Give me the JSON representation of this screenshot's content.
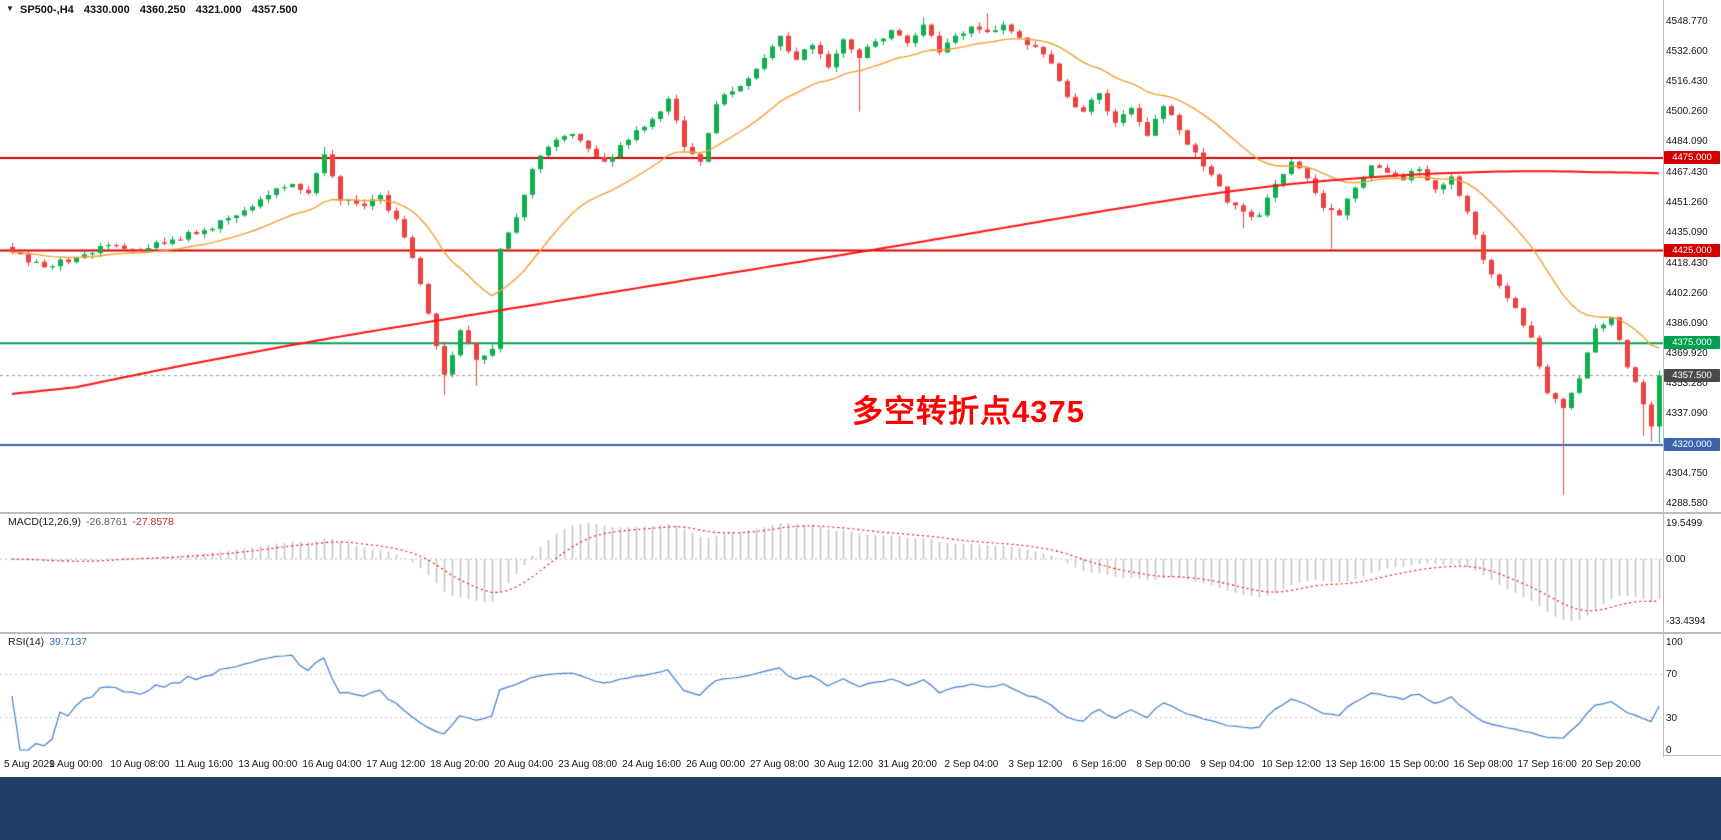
{
  "window": {
    "background": "#ffffff",
    "bottom_bar_color": "#1e3f66"
  },
  "header": {
    "symbol_timeframe": "SP500-,H4",
    "open": "4330.000",
    "high": "4360.250",
    "low": "4321.000",
    "close": "4357.500"
  },
  "chart_data": {
    "type": "candlestick",
    "symbol": "SP500-",
    "timeframe": "H4",
    "up_color": "#0fae4e",
    "down_color": "#ef4040",
    "y_axis": {
      "min": 4286,
      "max": 4556,
      "ticks": [
        "4548.770",
        "4532.600",
        "4516.430",
        "4500.260",
        "4484.090",
        "4467.430",
        "4451.260",
        "4435.090",
        "4418.430",
        "4402.260",
        "4386.090",
        "4369.920",
        "4353.280",
        "4337.090",
        "4304.750",
        "4288.580"
      ]
    },
    "x_ticks": [
      "5 Aug 2021",
      "9 Aug 00:00",
      "10 Aug 08:00",
      "11 Aug 16:00",
      "13 Aug 00:00",
      "16 Aug 04:00",
      "17 Aug 12:00",
      "18 Aug 20:00",
      "20 Aug 04:00",
      "23 Aug 08:00",
      "24 Aug 16:00",
      "26 Aug 00:00",
      "27 Aug 08:00",
      "30 Aug 12:00",
      "31 Aug 20:00",
      "2 Sep 04:00",
      "3 Sep 12:00",
      "6 Sep 16:00",
      "8 Sep 00:00",
      "9 Sep 04:00",
      "10 Sep 12:00",
      "13 Sep 16:00",
      "15 Sep 00:00",
      "16 Sep 08:00",
      "17 Sep 16:00",
      "20 Sep 20:00"
    ],
    "candles": {
      "count": 207,
      "bars_per_x_tick": 8,
      "seed": 9,
      "noise": 2.0,
      "anchors": [
        [
          0,
          4424
        ],
        [
          4,
          4416
        ],
        [
          8,
          4421
        ],
        [
          12,
          4428
        ],
        [
          16,
          4425
        ],
        [
          20,
          4431
        ],
        [
          24,
          4436
        ],
        [
          28,
          4444
        ],
        [
          32,
          4455
        ],
        [
          35,
          4461
        ],
        [
          37,
          4456
        ],
        [
          39,
          4477
        ],
        [
          41,
          4452
        ],
        [
          44,
          4449
        ],
        [
          46,
          4455
        ],
        [
          48,
          4442
        ],
        [
          50,
          4421
        ],
        [
          52,
          4391
        ],
        [
          54,
          4358
        ],
        [
          56,
          4382
        ],
        [
          58,
          4366
        ],
        [
          60,
          4372
        ],
        [
          61,
          4426
        ],
        [
          63,
          4443
        ],
        [
          65,
          4469
        ],
        [
          67,
          4481
        ],
        [
          70,
          4488
        ],
        [
          72,
          4480
        ],
        [
          74,
          4473
        ],
        [
          76,
          4482
        ],
        [
          78,
          4490
        ],
        [
          80,
          4496
        ],
        [
          82,
          4507
        ],
        [
          84,
          4481
        ],
        [
          86,
          4473
        ],
        [
          88,
          4504
        ],
        [
          90,
          4511
        ],
        [
          92,
          4518
        ],
        [
          94,
          4529
        ],
        [
          96,
          4541
        ],
        [
          98,
          4528
        ],
        [
          100,
          4536
        ],
        [
          102,
          4524
        ],
        [
          104,
          4539
        ],
        [
          106,
          4529
        ],
        [
          108,
          4538
        ],
        [
          110,
          4544
        ],
        [
          112,
          4537
        ],
        [
          114,
          4547
        ],
        [
          116,
          4532
        ],
        [
          118,
          4541
        ],
        [
          120,
          4546
        ],
        [
          122,
          4543
        ],
        [
          124,
          4547
        ],
        [
          126,
          4540
        ],
        [
          128,
          4535
        ],
        [
          130,
          4526
        ],
        [
          132,
          4508
        ],
        [
          134,
          4500
        ],
        [
          136,
          4510
        ],
        [
          138,
          4494
        ],
        [
          140,
          4502
        ],
        [
          142,
          4487
        ],
        [
          144,
          4503
        ],
        [
          146,
          4490
        ],
        [
          148,
          4478
        ],
        [
          150,
          4466
        ],
        [
          152,
          4451
        ],
        [
          154,
          4446
        ],
        [
          156,
          4444
        ],
        [
          158,
          4461
        ],
        [
          160,
          4473
        ],
        [
          162,
          4464
        ],
        [
          164,
          4448
        ],
        [
          166,
          4444
        ],
        [
          168,
          4459
        ],
        [
          170,
          4471
        ],
        [
          172,
          4467
        ],
        [
          174,
          4463
        ],
        [
          176,
          4469
        ],
        [
          178,
          4458
        ],
        [
          180,
          4465
        ],
        [
          182,
          4446
        ],
        [
          184,
          4420
        ],
        [
          186,
          4406
        ],
        [
          188,
          4394
        ],
        [
          190,
          4378
        ],
        [
          192,
          4348
        ],
        [
          194,
          4340
        ],
        [
          196,
          4356
        ],
        [
          198,
          4383
        ],
        [
          200,
          4389
        ],
        [
          202,
          4362
        ],
        [
          204,
          4342
        ],
        [
          205,
          4330
        ],
        [
          206,
          4357.5
        ]
      ],
      "wick_events": [
        {
          "i": 39,
          "high": 4481
        },
        {
          "i": 54,
          "low": 4347
        },
        {
          "i": 58,
          "low": 4352
        },
        {
          "i": 106,
          "low": 4500
        },
        {
          "i": 114,
          "high": 4551
        },
        {
          "i": 122,
          "high": 4553
        },
        {
          "i": 154,
          "low": 4437
        },
        {
          "i": 165,
          "low": 4426
        },
        {
          "i": 194,
          "low": 4293
        },
        {
          "i": 204,
          "low": 4325
        },
        {
          "i": 205,
          "low": 4322
        },
        {
          "i": 206,
          "open": 4330,
          "high": 4360.25,
          "low": 4321,
          "close": 4357.5
        }
      ]
    },
    "moving_averages": [
      {
        "name": "ema-fast",
        "color": "#f2a035",
        "period": 20
      },
      {
        "name": "ma-slow",
        "color": "#ff1212",
        "anchors": [
          [
            0,
            4344
          ],
          [
            20,
            4362
          ],
          [
            40,
            4378
          ],
          [
            60,
            4392
          ],
          [
            80,
            4406
          ],
          [
            100,
            4420
          ],
          [
            110,
            4427
          ],
          [
            125,
            4438
          ],
          [
            140,
            4449
          ],
          [
            155,
            4459
          ],
          [
            170,
            4465
          ],
          [
            185,
            4468
          ],
          [
            196,
            4468
          ],
          [
            206,
            4466
          ]
        ]
      }
    ],
    "h_lines": [
      {
        "value": 4475.0,
        "label": "4475.000",
        "color": "#d40000"
      },
      {
        "value": 4425.0,
        "label": "4425.000",
        "color": "#d40000"
      },
      {
        "value": 4375.0,
        "label": "4375.000",
        "color": "#00a050"
      },
      {
        "value": 4320.0,
        "label": "4320.000",
        "color": "#3a62ad"
      }
    ],
    "current_price": {
      "value": 4357.5,
      "label": "4357.500",
      "color": "#4a4a4a",
      "line_color": "#9a9a9a"
    },
    "annotation": {
      "text": "多空转折点4375",
      "color": "#ff0000"
    }
  },
  "macd": {
    "label": "MACD(12,26,9)",
    "main_value": "-26.8761",
    "signal_value": "-27.8578",
    "params": {
      "fast": 12,
      "slow": 26,
      "signal": 9
    },
    "axis_ticks": [
      "19.5499",
      "0.00",
      "-33.4394"
    ],
    "max": 19.5499,
    "min": -33.4394,
    "hist_color": "#c6c6c6",
    "signal_color": "#ff0000"
  },
  "rsi": {
    "label": "RSI(14)",
    "value": "39.7137",
    "period": 14,
    "axis_ticks": [
      100,
      70,
      30,
      0
    ],
    "levels": [
      70,
      30
    ],
    "color": "#3f7fd0"
  }
}
